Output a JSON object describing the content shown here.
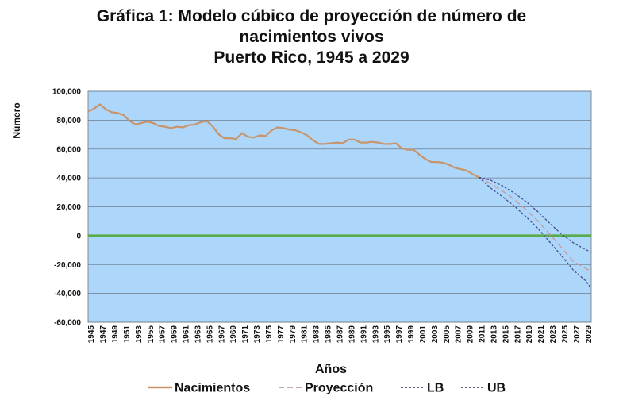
{
  "chart_data": {
    "type": "line",
    "title_lines": [
      "Gráfica 1: Modelo cúbico de proyección de número de",
      "nacimientos vivos",
      "Puerto Rico, 1945 a 2029"
    ],
    "xlabel": "Años",
    "ylabel": "Número",
    "ylim": [
      -60000,
      100000
    ],
    "yticks": [
      -60000,
      -40000,
      -20000,
      0,
      20000,
      40000,
      60000,
      80000,
      100000
    ],
    "ytick_labels": [
      "-60,000",
      "-40,000",
      "-20,000",
      "0",
      "20,000",
      "40,000",
      "60,000",
      "80,000",
      "100,000"
    ],
    "xlim": [
      1945,
      2030
    ],
    "xtick_labels": [
      "1945",
      "1947",
      "1949",
      "1951",
      "1953",
      "1955",
      "1957",
      "1959",
      "1961",
      "1963",
      "1965",
      "1967",
      "1969",
      "1971",
      "1973",
      "1975",
      "1977",
      "1979",
      "1981",
      "1983",
      "1985",
      "1987",
      "1989",
      "1991",
      "1993",
      "1995",
      "1997",
      "1999",
      "2001",
      "2003",
      "2005",
      "2007",
      "2009",
      "2011",
      "2013",
      "2015",
      "2017",
      "2019",
      "2021",
      "2023",
      "2025",
      "2027",
      "2029"
    ],
    "grid": true,
    "plot_background": "#add6fb",
    "zero_line_color": "#5aab4a",
    "legend_placement": "bottom",
    "series": [
      {
        "name": "Nacimientos",
        "style": "solid",
        "color": "#c8956a",
        "x": [
          1945,
          1946,
          1947,
          1948,
          1949,
          1950,
          1951,
          1952,
          1953,
          1954,
          1955,
          1956,
          1957,
          1958,
          1959,
          1960,
          1961,
          1962,
          1963,
          1964,
          1965,
          1966,
          1967,
          1968,
          1969,
          1970,
          1971,
          1972,
          1973,
          1974,
          1975,
          1976,
          1977,
          1978,
          1979,
          1980,
          1981,
          1982,
          1983,
          1984,
          1985,
          1986,
          1987,
          1988,
          1989,
          1990,
          1991,
          1992,
          1993,
          1994,
          1995,
          1996,
          1997,
          1998,
          1999,
          2000,
          2001,
          2002,
          2003,
          2004,
          2005,
          2006,
          2007,
          2008,
          2009,
          2010,
          2011
        ],
        "values": [
          86000,
          88000,
          91000,
          87500,
          85500,
          85000,
          83500,
          79500,
          77000,
          78000,
          79000,
          78000,
          76000,
          75500,
          74500,
          75500,
          75000,
          76500,
          77000,
          78500,
          79500,
          76000,
          70500,
          67500,
          67500,
          67000,
          71000,
          68500,
          68000,
          69500,
          69000,
          73000,
          75000,
          74500,
          73500,
          73000,
          71500,
          69500,
          66000,
          63500,
          63500,
          64000,
          64500,
          64000,
          66500,
          66500,
          64500,
          64500,
          65000,
          64500,
          63500,
          63500,
          64000,
          60500,
          59500,
          59500,
          56000,
          53000,
          51000,
          51000,
          50500,
          49000,
          47000,
          46000,
          45000,
          42500,
          40500
        ]
      },
      {
        "name": "Proyección",
        "style": "dash",
        "color": "#c89a9a",
        "x": [
          2011,
          2013,
          2015,
          2017,
          2019,
          2021,
          2023,
          2025,
          2027,
          2029,
          2030
        ],
        "values": [
          40500,
          36000,
          31000,
          25000,
          18000,
          10000,
          1000,
          -8500,
          -18000,
          -22500,
          -25000
        ]
      },
      {
        "name": "LB",
        "style": "dot",
        "color": "#4a4a8a",
        "x": [
          2011,
          2013,
          2015,
          2017,
          2019,
          2021,
          2023,
          2025,
          2027,
          2029,
          2030
        ],
        "values": [
          40500,
          33000,
          27000,
          20500,
          13000,
          5000,
          -4500,
          -14000,
          -24000,
          -31000,
          -36500
        ]
      },
      {
        "name": "UB",
        "style": "dot",
        "color": "#4a4a8a",
        "x": [
          2011,
          2013,
          2015,
          2017,
          2019,
          2021,
          2023,
          2025,
          2027,
          2029,
          2030
        ],
        "values": [
          40500,
          38500,
          34500,
          29500,
          23500,
          16500,
          8500,
          1000,
          -5000,
          -9500,
          -11500
        ]
      }
    ]
  }
}
